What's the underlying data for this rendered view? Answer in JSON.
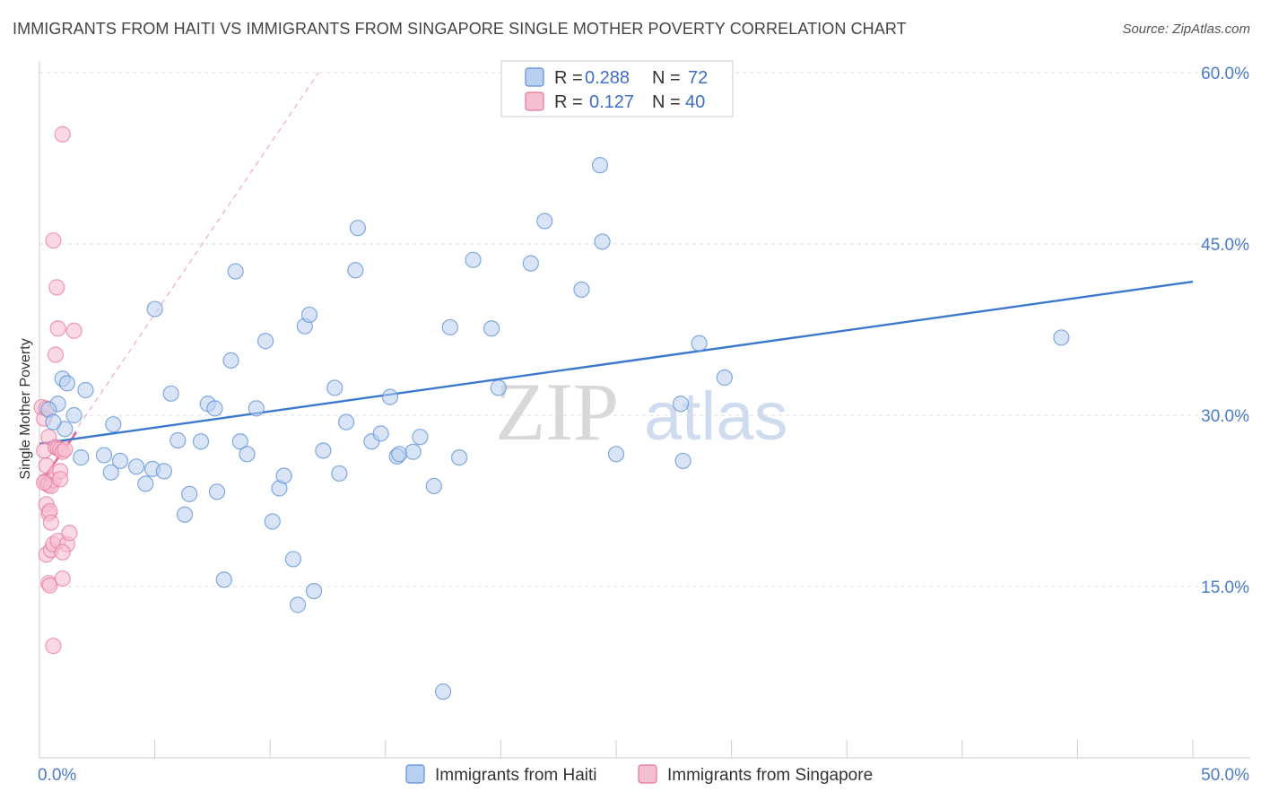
{
  "title": "IMMIGRANTS FROM HAITI VS IMMIGRANTS FROM SINGAPORE SINGLE MOTHER POVERTY CORRELATION CHART",
  "source": "Source: ZipAtlas.com",
  "watermark": {
    "zip": "ZIP",
    "atlas": "atlas"
  },
  "colors": {
    "haiti": "#5b8fd6",
    "haiti_fill": "#b9cff0",
    "singapore": "#e8749a",
    "singapore_fill": "#f6bfd0",
    "tick": "#4a7cc9"
  },
  "legend": {
    "r_label": "R =",
    "n_label": "N =",
    "haiti": {
      "r": "0.288",
      "n": "72"
    },
    "singapore": {
      "r": "0.127",
      "n": "40"
    }
  },
  "chart_data": {
    "type": "scatter",
    "ylabel": "Single Mother Poverty",
    "xlim": [
      0,
      50
    ],
    "ylim": [
      0,
      62
    ],
    "x_tick_labels": {
      "min": "0.0%",
      "max": "50.0%"
    },
    "y_ticks": [
      {
        "value": 15,
        "label": "15.0%"
      },
      {
        "value": 30,
        "label": "30.0%"
      },
      {
        "value": 45,
        "label": "45.0%"
      },
      {
        "value": 60,
        "label": "60.0%"
      }
    ],
    "series": [
      {
        "name": "Immigrants from Haiti",
        "trend": [
          [
            0,
            27.5
          ],
          [
            50,
            41.7
          ]
        ],
        "points": [
          [
            1.0,
            33.2
          ],
          [
            1.2,
            32.8
          ],
          [
            1.5,
            30.0
          ],
          [
            0.8,
            31.0
          ],
          [
            2.0,
            32.2
          ],
          [
            1.1,
            28.8
          ],
          [
            0.4,
            30.5
          ],
          [
            1.8,
            26.3
          ],
          [
            2.8,
            26.5
          ],
          [
            3.2,
            29.2
          ],
          [
            3.5,
            26.0
          ],
          [
            3.1,
            25.0
          ],
          [
            4.2,
            25.5
          ],
          [
            4.6,
            24.0
          ],
          [
            4.9,
            25.3
          ],
          [
            5.4,
            25.1
          ],
          [
            5.0,
            39.3
          ],
          [
            5.7,
            31.9
          ],
          [
            6.0,
            27.8
          ],
          [
            6.5,
            23.1
          ],
          [
            6.3,
            21.3
          ],
          [
            7.0,
            27.7
          ],
          [
            7.3,
            31.0
          ],
          [
            7.6,
            30.6
          ],
          [
            7.7,
            23.3
          ],
          [
            8.0,
            15.6
          ],
          [
            8.3,
            34.8
          ],
          [
            8.5,
            42.6
          ],
          [
            8.7,
            27.7
          ],
          [
            9.0,
            26.6
          ],
          [
            9.4,
            30.6
          ],
          [
            9.8,
            36.5
          ],
          [
            10.1,
            20.7
          ],
          [
            10.4,
            23.6
          ],
          [
            10.6,
            24.7
          ],
          [
            11.0,
            17.4
          ],
          [
            11.2,
            13.4
          ],
          [
            11.5,
            37.8
          ],
          [
            11.7,
            38.8
          ],
          [
            11.9,
            14.6
          ],
          [
            12.3,
            26.9
          ],
          [
            12.8,
            32.4
          ],
          [
            13.0,
            24.9
          ],
          [
            13.3,
            29.4
          ],
          [
            13.8,
            46.4
          ],
          [
            13.7,
            42.7
          ],
          [
            14.4,
            27.7
          ],
          [
            14.8,
            28.4
          ],
          [
            15.2,
            31.6
          ],
          [
            15.5,
            26.4
          ],
          [
            15.6,
            26.6
          ],
          [
            16.2,
            26.8
          ],
          [
            16.5,
            28.1
          ],
          [
            17.1,
            23.8
          ],
          [
            17.5,
            5.8
          ],
          [
            17.8,
            37.7
          ],
          [
            18.2,
            26.3
          ],
          [
            18.8,
            43.6
          ],
          [
            19.6,
            37.6
          ],
          [
            19.9,
            32.4
          ],
          [
            21.3,
            43.3
          ],
          [
            21.9,
            47.0
          ],
          [
            23.5,
            41.0
          ],
          [
            24.3,
            51.9
          ],
          [
            24.4,
            45.2
          ],
          [
            25.0,
            26.6
          ],
          [
            27.8,
            31.0
          ],
          [
            27.9,
            26.0
          ],
          [
            28.6,
            36.3
          ],
          [
            29.7,
            33.3
          ],
          [
            44.3,
            36.8
          ],
          [
            0.6,
            29.4
          ]
        ]
      },
      {
        "name": "Immigrants from Singapore",
        "trend": [
          [
            0,
            24.0
          ],
          [
            1.6,
            28.5
          ]
        ],
        "trend_extended": [
          [
            0,
            24.0
          ],
          [
            12.1,
            60.0
          ]
        ],
        "points": [
          [
            0.1,
            30.7
          ],
          [
            0.2,
            29.7
          ],
          [
            0.3,
            30.6
          ],
          [
            0.4,
            28.1
          ],
          [
            0.2,
            26.9
          ],
          [
            0.3,
            25.6
          ],
          [
            0.25,
            24.2
          ],
          [
            0.35,
            24.0
          ],
          [
            0.4,
            23.9
          ],
          [
            0.6,
            24.3
          ],
          [
            0.5,
            23.8
          ],
          [
            0.3,
            22.2
          ],
          [
            0.4,
            21.4
          ],
          [
            0.45,
            21.6
          ],
          [
            0.5,
            20.6
          ],
          [
            0.7,
            27.2
          ],
          [
            0.8,
            27.1
          ],
          [
            0.9,
            27.0
          ],
          [
            1.0,
            26.8
          ],
          [
            1.1,
            27.0
          ],
          [
            0.9,
            25.1
          ],
          [
            0.3,
            17.8
          ],
          [
            0.5,
            18.2
          ],
          [
            0.6,
            18.7
          ],
          [
            0.8,
            19.0
          ],
          [
            1.2,
            18.7
          ],
          [
            1.3,
            19.7
          ],
          [
            1.0,
            18.0
          ],
          [
            0.4,
            15.3
          ],
          [
            0.45,
            15.1
          ],
          [
            1.0,
            15.7
          ],
          [
            0.6,
            9.8
          ],
          [
            0.7,
            35.3
          ],
          [
            0.8,
            37.6
          ],
          [
            1.5,
            37.4
          ],
          [
            0.75,
            41.2
          ],
          [
            0.6,
            45.3
          ],
          [
            1.0,
            54.6
          ],
          [
            0.2,
            24.1
          ],
          [
            0.9,
            24.4
          ]
        ]
      }
    ],
    "legend_entries": [
      "Immigrants from Haiti",
      "Immigrants from Singapore"
    ]
  }
}
